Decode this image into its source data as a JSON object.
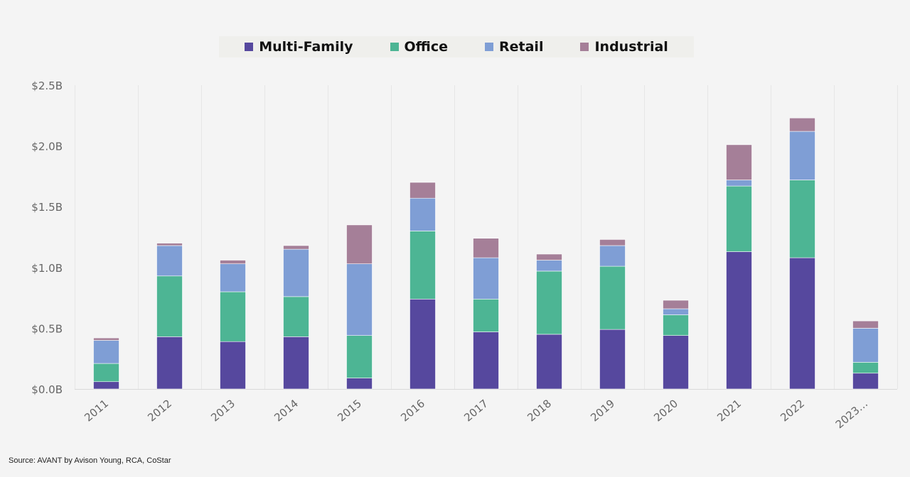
{
  "chart_data": {
    "type": "bar",
    "stacked": true,
    "categories": [
      "2011",
      "2012",
      "2013",
      "2014",
      "2015",
      "2016",
      "2017",
      "2018",
      "2019",
      "2020",
      "2021",
      "2022",
      "2023…"
    ],
    "series": [
      {
        "name": "Multi-Family",
        "color": "#56489e",
        "values": [
          0.06,
          0.43,
          0.39,
          0.43,
          0.09,
          0.74,
          0.47,
          0.45,
          0.49,
          0.44,
          1.13,
          1.08,
          0.13
        ]
      },
      {
        "name": "Office",
        "color": "#4db594",
        "values": [
          0.15,
          0.5,
          0.41,
          0.33,
          0.35,
          0.56,
          0.27,
          0.52,
          0.52,
          0.17,
          0.54,
          0.64,
          0.09
        ]
      },
      {
        "name": "Retail",
        "color": "#7f9ed5",
        "values": [
          0.19,
          0.25,
          0.23,
          0.39,
          0.59,
          0.27,
          0.34,
          0.09,
          0.17,
          0.05,
          0.05,
          0.4,
          0.28
        ]
      },
      {
        "name": "Industrial",
        "color": "#a57f98",
        "values": [
          0.02,
          0.02,
          0.03,
          0.03,
          0.32,
          0.13,
          0.16,
          0.05,
          0.05,
          0.07,
          0.29,
          0.11,
          0.06
        ]
      }
    ],
    "ylim": [
      0,
      2.5
    ],
    "yticks": [
      0,
      0.5,
      1.0,
      1.5,
      2.0,
      2.5
    ],
    "ytick_labels": [
      "$0.0B",
      "$0.5B",
      "$1.0B",
      "$1.5B",
      "$2.0B",
      "$2.5B"
    ],
    "grid": "vertical",
    "legend_position": "top-center"
  },
  "source": "Source: AVANT by Avison Young, RCA, CoStar"
}
